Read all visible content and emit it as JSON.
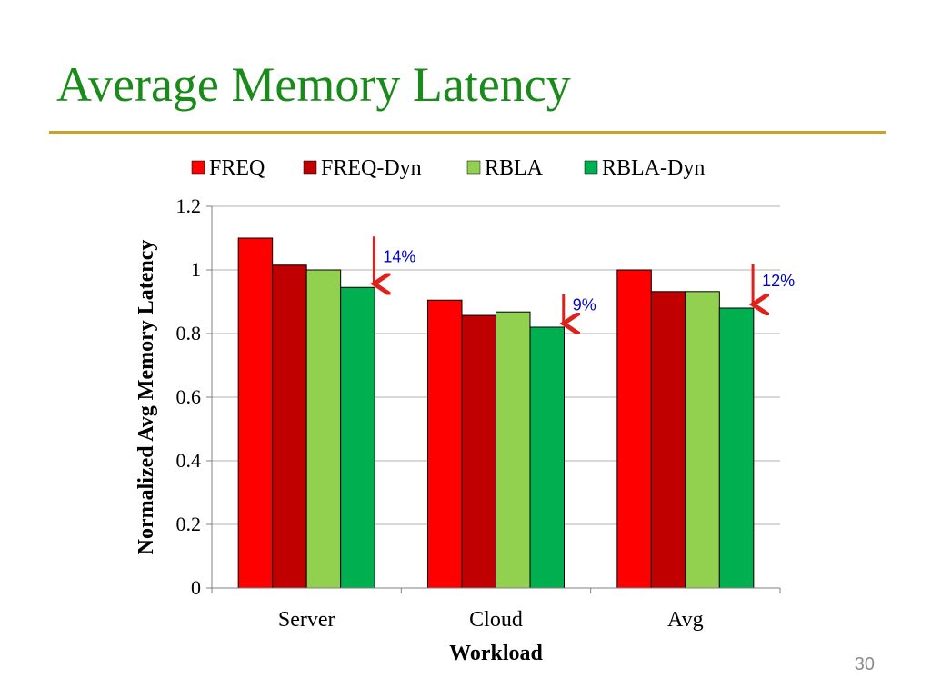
{
  "slide": {
    "title": "Average Memory Latency",
    "page_number": "30",
    "colors": {
      "title": "#1a8a1a",
      "rule": "#c9a227",
      "page_number": "#8c8c8c"
    }
  },
  "chart_data": {
    "type": "bar",
    "title": "",
    "categories": [
      "Server",
      "Cloud",
      "Avg"
    ],
    "series": [
      {
        "name": "FREQ",
        "color": "#ff0000",
        "values": [
          1.1,
          0.905,
          1.0
        ]
      },
      {
        "name": "FREQ-Dyn",
        "color": "#c00000",
        "values": [
          1.015,
          0.857,
          0.932
        ]
      },
      {
        "name": "RBLA",
        "color": "#92d050",
        "values": [
          1.0,
          0.868,
          0.932
        ]
      },
      {
        "name": "RBLA-Dyn",
        "color": "#00b050",
        "values": [
          0.945,
          0.82,
          0.88
        ]
      }
    ],
    "xlabel": "Workload",
    "ylabel": "Normalized Avg Memory Latency",
    "ylim": [
      0,
      1.2
    ],
    "yticks": [
      "0",
      "0.2",
      "0.4",
      "0.6",
      "0.8",
      "1",
      "1.2"
    ],
    "grid": true,
    "legend_position": "top",
    "annotations": [
      {
        "category": "Server",
        "text": "14%"
      },
      {
        "category": "Cloud",
        "text": "9%"
      },
      {
        "category": "Avg",
        "text": "12%"
      }
    ],
    "annotation_colors": {
      "arrow": "#e0201b",
      "text": "#0000cc"
    }
  }
}
